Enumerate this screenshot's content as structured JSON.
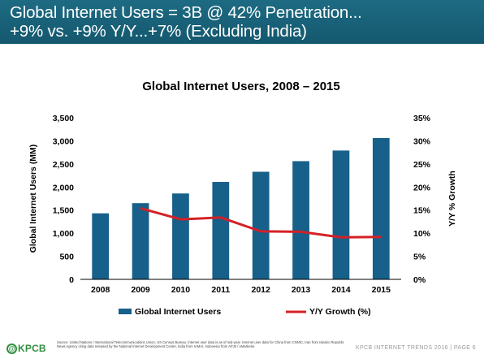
{
  "header": {
    "title_line1": "Global Internet Users = 3B @ 42% Penetration...",
    "title_line2": "+9% vs. +9% Y/Y...+7% (Excluding India)"
  },
  "colors": {
    "header_band": "#17607a",
    "bar": "#17608a",
    "line": "#d42126",
    "logo": "#2f8f3f"
  },
  "chart_data": {
    "type": "bar",
    "title": "Global Internet Users, 2008 – 2015",
    "categories": [
      "2008",
      "2009",
      "2010",
      "2011",
      "2012",
      "2013",
      "2014",
      "2015"
    ],
    "series": [
      {
        "name": "Global Internet Users",
        "type": "bar",
        "axis": "left",
        "values": [
          1430,
          1650,
          1860,
          2110,
          2330,
          2560,
          2790,
          3060
        ]
      },
      {
        "name": "Y/Y Growth (%)",
        "type": "line",
        "axis": "right",
        "values": [
          null,
          15.4,
          13.0,
          13.4,
          10.4,
          10.3,
          9.1,
          9.2
        ]
      }
    ],
    "ylabel": "Global Internet Users (MM)",
    "y2label": "Y/Y % Growth",
    "ylim": [
      0,
      3500
    ],
    "y2lim": [
      0,
      35
    ],
    "yticks": [
      "0",
      "500",
      "1,000",
      "1,500",
      "2,000",
      "2,500",
      "3,000",
      "3,500"
    ],
    "y2ticks": [
      "0%",
      "5%",
      "10%",
      "15%",
      "20%",
      "25%",
      "30%",
      "35%"
    ],
    "grid": false,
    "legend": "bottom"
  },
  "footer": {
    "logo_symbol": "@",
    "logo_text": "KPCB",
    "source": "Source: United Nations / International Telecommunications Union, US Census Bureau. Internet user data is as of mid-year. Internet user data for China from CNNIC, Iran from Islamic Republic News Agency citing data released by the National Internet Development Center, India from IAMAI, Indonesia from APJII / eMarketer.",
    "right_text": "KPCB INTERNET TRENDS 2016  |  PAGE 6"
  }
}
